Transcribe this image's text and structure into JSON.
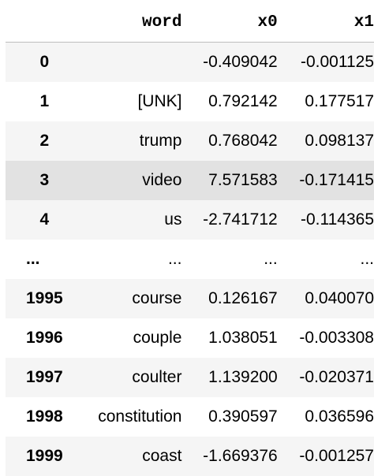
{
  "table": {
    "columns": {
      "index": "",
      "word": "word",
      "x0": "x0",
      "x1": "x1"
    },
    "rows": [
      {
        "index": "0",
        "word": "",
        "x0": "-0.409042",
        "x1": "-0.001125"
      },
      {
        "index": "1",
        "word": "[UNK]",
        "x0": "0.792142",
        "x1": "0.177517"
      },
      {
        "index": "2",
        "word": "trump",
        "x0": "0.768042",
        "x1": "0.098137"
      },
      {
        "index": "3",
        "word": "video",
        "x0": "7.571583",
        "x1": "-0.171415"
      },
      {
        "index": "4",
        "word": "us",
        "x0": "-2.741712",
        "x1": "-0.114365"
      },
      {
        "index": "...",
        "word": "...",
        "x0": "...",
        "x1": "..."
      },
      {
        "index": "1995",
        "word": "course",
        "x0": "0.126167",
        "x1": "0.040070"
      },
      {
        "index": "1996",
        "word": "couple",
        "x0": "1.038051",
        "x1": "-0.003308"
      },
      {
        "index": "1997",
        "word": "coulter",
        "x0": "1.139200",
        "x1": "-0.020371"
      },
      {
        "index": "1998",
        "word": "constitution",
        "x0": "0.390597",
        "x1": "0.036596"
      },
      {
        "index": "1999",
        "word": "coast",
        "x0": "-1.669376",
        "x1": "-0.001257"
      }
    ],
    "hover_row_index": "3"
  }
}
